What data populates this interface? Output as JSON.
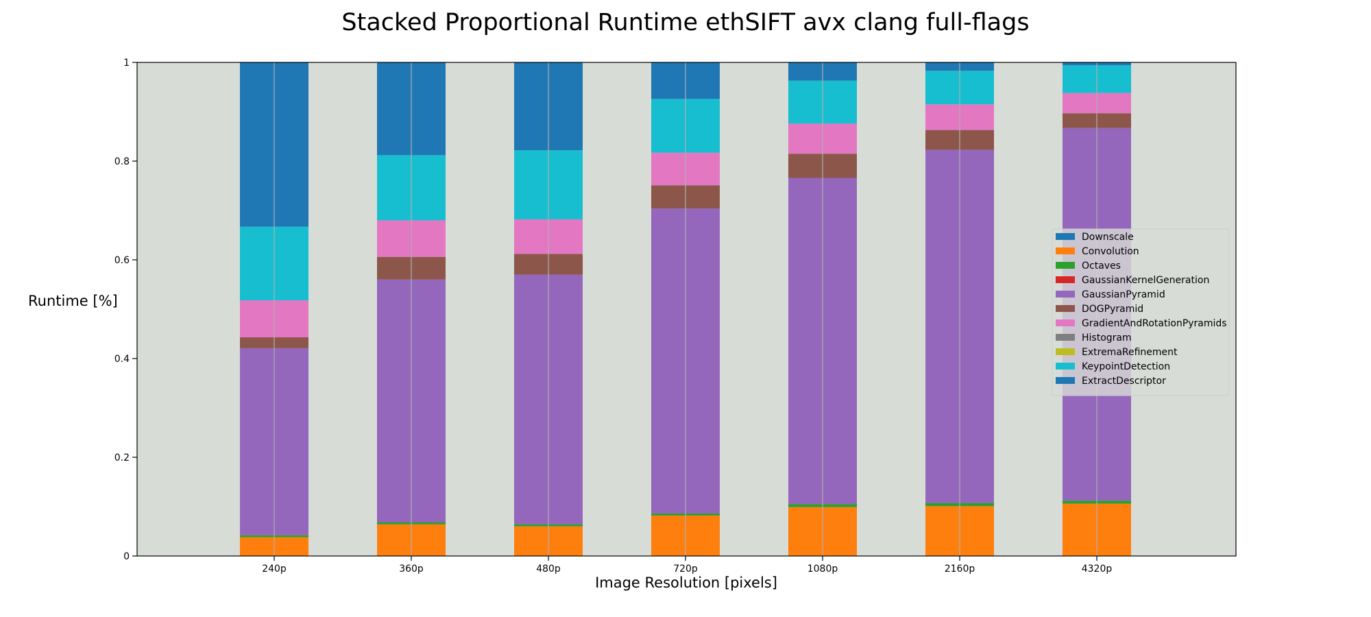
{
  "chart_data": {
    "type": "bar",
    "stacked": true,
    "title": "Stacked Proportional Runtime ethSIFT avx clang full-flags",
    "xlabel": "Image Resolution [pixels]",
    "ylabel": "Runtime [%]",
    "categories": [
      "240p",
      "360p",
      "480p",
      "720p",
      "1080p",
      "2160p",
      "4320p"
    ],
    "ylim": [
      0,
      1
    ],
    "yticks": [
      "0",
      "0.2",
      "0.4",
      "0.6",
      "0.8",
      "1"
    ],
    "ytick_values": [
      0,
      0.2,
      0.4,
      0.6,
      0.8,
      1
    ],
    "grid": "vertical",
    "legend_position": "right",
    "plot_background": "#d8dcd6",
    "series": [
      {
        "name": "Downscale",
        "color": "#1f77b4",
        "values": [
          0.0,
          0.0,
          0.0,
          0.0,
          0.0,
          0.0,
          0.0
        ]
      },
      {
        "name": "Convolution",
        "color": "#ff7f0e",
        "values": [
          0.038,
          0.064,
          0.06,
          0.082,
          0.099,
          0.101,
          0.106
        ]
      },
      {
        "name": "Octaves",
        "color": "#2ca02c",
        "values": [
          0.004,
          0.004,
          0.004,
          0.004,
          0.006,
          0.006,
          0.006
        ]
      },
      {
        "name": "GaussianKernelGeneration",
        "color": "#d62728",
        "values": [
          0.0,
          0.0,
          0.0,
          0.0,
          0.0,
          0.0,
          0.0
        ]
      },
      {
        "name": "GaussianPyramid",
        "color": "#9467bd",
        "values": [
          0.379,
          0.492,
          0.506,
          0.618,
          0.661,
          0.716,
          0.755
        ]
      },
      {
        "name": "DOGPyramid",
        "color": "#8c564b",
        "values": [
          0.022,
          0.046,
          0.042,
          0.047,
          0.049,
          0.04,
          0.03
        ]
      },
      {
        "name": "GradientAndRotationPyramids",
        "color": "#e377c2",
        "values": [
          0.075,
          0.074,
          0.07,
          0.066,
          0.061,
          0.052,
          0.041
        ]
      },
      {
        "name": "Histogram",
        "color": "#7f7f7f",
        "values": [
          0.0,
          0.0,
          0.0,
          0.0,
          0.0,
          0.0,
          0.0
        ]
      },
      {
        "name": "ExtremaRefinement",
        "color": "#bcbd22",
        "values": [
          0.0,
          0.0,
          0.0,
          0.0,
          0.0,
          0.0,
          0.0
        ]
      },
      {
        "name": "KeypointDetection",
        "color": "#17becf",
        "values": [
          0.149,
          0.132,
          0.14,
          0.109,
          0.087,
          0.068,
          0.056
        ]
      },
      {
        "name": "ExtractDescriptor",
        "color": "#1f77b4",
        "values": [
          0.333,
          0.188,
          0.178,
          0.074,
          0.037,
          0.017,
          0.006
        ]
      }
    ]
  }
}
